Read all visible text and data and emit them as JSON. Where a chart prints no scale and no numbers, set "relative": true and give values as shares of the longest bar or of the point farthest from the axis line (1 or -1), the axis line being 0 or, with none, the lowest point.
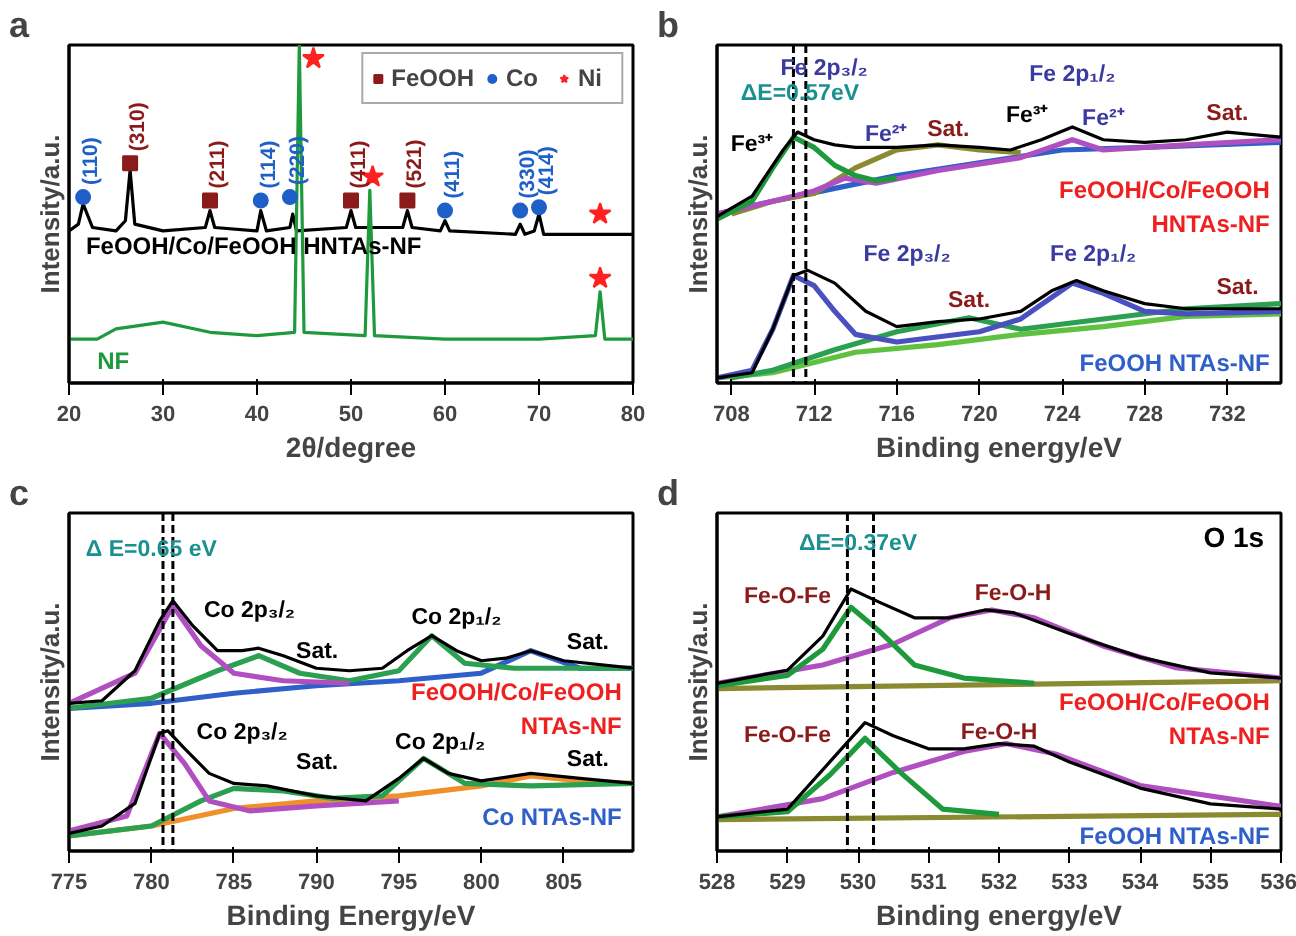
{
  "chart_data": [
    {
      "type": "line",
      "relative": true,
      "xlim": [
        20,
        80
      ],
      "xticks": [
        20,
        30,
        40,
        50,
        60,
        70,
        80
      ],
      "xlabel": "2θ/degree",
      "ylabel": "Intensity/a.u.",
      "tick_labels": "x",
      "legend": "top right",
      "annotations": [
        "a",
        {
          "text": "(310)",
          "x": 26.5,
          "y": 0.65
        },
        {
          "text": "(211)",
          "x": 35,
          "y": 0.54
        },
        {
          "text": "(411)",
          "x": 50,
          "y": 0.54
        },
        {
          "text": "(521)",
          "x": 56,
          "y": 0.54
        },
        {
          "text": "(110)",
          "x": 21.5,
          "y": 0.55
        },
        {
          "text": "(114)",
          "x": 40.4,
          "y": 0.54
        },
        {
          "text": "(220)",
          "x": 43.5,
          "y": 0.55
        },
        {
          "text": "(411)",
          "x": 60,
          "y": 0.51
        },
        {
          "text": "(330)",
          "x": 68,
          "y": 0.51
        },
        {
          "text": "(414)",
          "x": 70,
          "y": 0.52
        }
      ],
      "series": [
        {
          "name": "FeOOH/Co/FeOOH HNTAs-NF",
          "color": "#000000",
          "x": [
            20,
            21,
            21.5,
            22.5,
            25,
            26,
            26.5,
            27,
            30,
            34.5,
            35,
            35.5,
            40,
            40.4,
            41,
            43.5,
            43.8,
            44.2,
            49.5,
            50,
            50.5,
            55.5,
            56,
            56.5,
            59.5,
            60,
            60.5,
            67.5,
            68,
            68.5,
            69.5,
            70,
            70.5,
            75,
            80
          ],
          "values": [
            0.45,
            0.47,
            0.53,
            0.46,
            0.45,
            0.48,
            0.63,
            0.47,
            0.45,
            0.46,
            0.51,
            0.46,
            0.45,
            0.51,
            0.45,
            0.46,
            0.5,
            0.45,
            0.46,
            0.51,
            0.46,
            0.46,
            0.51,
            0.46,
            0.45,
            0.48,
            0.45,
            0.44,
            0.47,
            0.44,
            0.45,
            0.5,
            0.44,
            0.44,
            0.44
          ]
        },
        {
          "name": "NF",
          "color": "#1e9a3c",
          "x": [
            20,
            23,
            25,
            30,
            35,
            40,
            44,
            44.5,
            45,
            51.5,
            52,
            52.5,
            60,
            70,
            76,
            76.5,
            77,
            80
          ],
          "values": [
            0.13,
            0.13,
            0.16,
            0.18,
            0.15,
            0.14,
            0.15,
            1.0,
            0.15,
            0.14,
            0.57,
            0.14,
            0.13,
            0.13,
            0.14,
            0.27,
            0.13,
            0.13
          ]
        },
        {
          "name": "FeOOH",
          "type": "scatter",
          "marker": "square",
          "color": "#8b1a1a",
          "x": [
            26.5,
            35,
            50,
            56
          ],
          "values": [
            0.65,
            0.54,
            0.54,
            0.54
          ]
        },
        {
          "name": "Co",
          "type": "scatter",
          "marker": "circle",
          "color": "#1f5fc8",
          "x": [
            21.5,
            40.4,
            43.5,
            60,
            68,
            70
          ],
          "values": [
            0.55,
            0.54,
            0.55,
            0.51,
            0.51,
            0.52
          ]
        },
        {
          "name": "Ni",
          "type": "scatter",
          "marker": "star",
          "color": "#ff2020",
          "x": [
            46,
            52.3,
            76.5,
            76.5
          ],
          "values": [
            0.96,
            0.61,
            0.31,
            0.5
          ]
        }
      ]
    },
    {
      "type": "line",
      "relative": true,
      "xlim": [
        707.3,
        734.6
      ],
      "xticks": [
        708,
        712,
        716,
        720,
        724,
        728,
        732
      ],
      "xlabel": "Binding energy/eV",
      "ylabel": "Intensity/a.u.",
      "tick_labels": "x",
      "ref_lines": [
        {
          "axis": "x",
          "value": 711.0,
          "line_style": "dashed",
          "color": "#000000"
        },
        {
          "axis": "x",
          "value": 711.6,
          "line_style": "dashed",
          "color": "#000000"
        }
      ],
      "annotations": [
        "b",
        "Fe 2p₃/₂",
        "ΔE=0.57eV",
        "Fe³⁺",
        "Fe²⁺",
        "Sat.",
        "Fe 2p₁/₂",
        "Fe³⁺",
        "Fe²⁺",
        "Sat.",
        "Fe 2p₃/₂",
        "Fe 2p₁/₂",
        "Sat.",
        "Sat."
      ],
      "series": [
        {
          "color": "#2f5fc8",
          "x": [
            707.3,
            710,
            713,
            716,
            720,
            724,
            728,
            734.6
          ],
          "values": [
            0.66,
            0.71,
            0.76,
            0.81,
            0.86,
            0.91,
            0.92,
            0.94
          ]
        },
        {
          "color": "#8a8a30",
          "x": [
            708,
            710,
            712,
            714,
            716,
            718,
            720,
            722
          ],
          "values": [
            0.66,
            0.71,
            0.74,
            0.84,
            0.91,
            0.93,
            0.91,
            0.9
          ]
        },
        {
          "color": "#b04fc0",
          "x": [
            707.3,
            710,
            712,
            713.5,
            715,
            718,
            722,
            724.5,
            726,
            730,
            734.6
          ],
          "values": [
            0.66,
            0.71,
            0.75,
            0.8,
            0.78,
            0.83,
            0.88,
            0.95,
            0.91,
            0.93,
            0.95
          ]
        },
        {
          "color": "#1e9a3c",
          "x": [
            707.3,
            709,
            710,
            711,
            712,
            713,
            714,
            715,
            716
          ],
          "values": [
            0.64,
            0.71,
            0.84,
            0.96,
            0.92,
            0.85,
            0.81,
            0.79,
            0.8
          ]
        },
        {
          "name": "FeOOH/Co/FeOOH\nHNTAs-NF",
          "color": "#000000",
          "x": [
            707.3,
            709,
            710.5,
            711.2,
            712,
            713,
            714,
            716,
            718,
            720,
            721.5,
            723,
            724.5,
            726,
            728,
            730,
            732,
            734.6
          ],
          "values": [
            0.65,
            0.73,
            0.91,
            0.98,
            0.95,
            0.93,
            0.92,
            0.92,
            0.93,
            0.92,
            0.91,
            0.95,
            1.0,
            0.95,
            0.94,
            0.95,
            0.98,
            0.96
          ]
        },
        {
          "color": "#60c040",
          "x": [
            707.3,
            710,
            714,
            718,
            722,
            726,
            730,
            734.6
          ],
          "values": [
            0.02,
            0.04,
            0.12,
            0.15,
            0.19,
            0.22,
            0.26,
            0.27
          ]
        },
        {
          "color": "#2aa050",
          "x": [
            708,
            710,
            713,
            716,
            719.5,
            722,
            726,
            730,
            734.6
          ],
          "values": [
            0.02,
            0.05,
            0.13,
            0.2,
            0.255,
            0.21,
            0.25,
            0.29,
            0.31
          ]
        },
        {
          "color": "#4a50c0",
          "x": [
            707.3,
            709,
            710,
            711,
            712,
            713,
            714,
            716,
            720,
            722,
            724.5,
            726,
            728,
            730,
            734.6
          ],
          "values": [
            0.02,
            0.05,
            0.21,
            0.42,
            0.38,
            0.28,
            0.19,
            0.16,
            0.2,
            0.25,
            0.39,
            0.35,
            0.28,
            0.27,
            0.28
          ]
        },
        {
          "name": "FeOOH NTAs-NF",
          "color": "#000000",
          "x": [
            707.3,
            709,
            710,
            711,
            711.7,
            713,
            714.5,
            716,
            718,
            720,
            722,
            723.5,
            724.7,
            726,
            728,
            730,
            734.6
          ],
          "values": [
            0.02,
            0.04,
            0.21,
            0.42,
            0.44,
            0.39,
            0.28,
            0.22,
            0.24,
            0.25,
            0.28,
            0.36,
            0.4,
            0.36,
            0.31,
            0.29,
            0.29
          ]
        }
      ]
    },
    {
      "type": "line",
      "relative": true,
      "xlim": [
        775,
        809.2
      ],
      "xticks": [
        775,
        780,
        785,
        790,
        795,
        800,
        805
      ],
      "xlabel": "Binding Energy/eV",
      "ylabel": "Intensity/a.u.",
      "tick_labels": "x",
      "ref_lines": [
        {
          "axis": "x",
          "value": 780.7,
          "line_style": "dashed",
          "color": "#000000"
        },
        {
          "axis": "x",
          "value": 781.3,
          "line_style": "dashed",
          "color": "#000000"
        }
      ],
      "annotations": [
        "c",
        "Δ E=0.65 eV",
        "Co 2p₃/₂",
        "Sat.",
        "Co 2p₁/₂",
        "Sat.",
        "Co 2p₃/₂",
        "Sat.",
        "Co 2p₁/₂",
        "Sat."
      ],
      "series": [
        {
          "color": "#2f5fc8",
          "x": [
            775,
            780,
            785,
            790,
            795,
            800,
            803,
            806,
            809.2
          ],
          "values": [
            0.57,
            0.59,
            0.63,
            0.66,
            0.68,
            0.71,
            0.8,
            0.73,
            0.73
          ]
        },
        {
          "color": "#2aa050",
          "x": [
            775,
            780,
            784,
            786.5,
            789,
            792,
            795,
            797,
            799,
            802,
            809.2
          ],
          "values": [
            0.57,
            0.61,
            0.72,
            0.78,
            0.71,
            0.68,
            0.72,
            0.86,
            0.75,
            0.73,
            0.73
          ]
        },
        {
          "color": "#b04fc0",
          "x": [
            775,
            779,
            781.3,
            783,
            785,
            788,
            792
          ],
          "values": [
            0.59,
            0.71,
            0.98,
            0.82,
            0.71,
            0.68,
            0.67
          ]
        },
        {
          "name": "FeOOH/Co/FeOOH\nNTAs-NF",
          "color": "#000000",
          "x": [
            775,
            777,
            779,
            780.5,
            781.3,
            782.5,
            784,
            785.5,
            786.5,
            788,
            790,
            792,
            794,
            795.5,
            797,
            798.5,
            800,
            801.5,
            803,
            805,
            809.2
          ],
          "values": [
            0.59,
            0.6,
            0.72,
            0.92,
            1.0,
            0.9,
            0.8,
            0.8,
            0.81,
            0.78,
            0.73,
            0.72,
            0.73,
            0.8,
            0.86,
            0.8,
            0.76,
            0.77,
            0.8,
            0.76,
            0.73
          ]
        },
        {
          "color": "#f0902a",
          "x": [
            775,
            780,
            785,
            790,
            795,
            800,
            803,
            806,
            809.2
          ],
          "values": [
            0.06,
            0.1,
            0.17,
            0.2,
            0.22,
            0.26,
            0.3,
            0.28,
            0.27
          ]
        },
        {
          "color": "#2aa050",
          "x": [
            775,
            780,
            783,
            785,
            788,
            791,
            794,
            796.5,
            799,
            803,
            809.2
          ],
          "values": [
            0.06,
            0.1,
            0.2,
            0.25,
            0.24,
            0.21,
            0.22,
            0.37,
            0.27,
            0.26,
            0.27
          ]
        },
        {
          "color": "#b04fc0",
          "x": [
            775,
            778.5,
            780.5,
            782,
            783.5,
            786,
            790,
            795
          ],
          "values": [
            0.08,
            0.14,
            0.47,
            0.35,
            0.2,
            0.16,
            0.18,
            0.2
          ]
        },
        {
          "name": "Co NTAs-NF",
          "color": "#000000",
          "x": [
            775,
            777,
            779,
            780.5,
            781,
            782,
            783.5,
            785,
            787,
            790,
            793,
            795,
            796.5,
            798,
            800,
            803,
            806,
            809.2
          ],
          "values": [
            0.07,
            0.1,
            0.19,
            0.47,
            0.48,
            0.41,
            0.31,
            0.27,
            0.26,
            0.22,
            0.2,
            0.29,
            0.37,
            0.31,
            0.28,
            0.31,
            0.29,
            0.27
          ]
        }
      ]
    },
    {
      "type": "line",
      "relative": true,
      "xlim": [
        528,
        536
      ],
      "xticks": [
        528,
        529,
        530,
        531,
        532,
        533,
        534,
        535,
        536
      ],
      "xlabel": "Binding energy/eV",
      "ylabel": "Intensity/a.u.",
      "tick_labels": "x",
      "ref_lines": [
        {
          "axis": "x",
          "value": 529.85,
          "line_style": "dashed",
          "color": "#000000"
        },
        {
          "axis": "x",
          "value": 530.22,
          "line_style": "dashed",
          "color": "#000000"
        }
      ],
      "annotations": [
        "d",
        "O 1s",
        "ΔE=0.37eV",
        "Fe-O-Fe",
        "Fe-O-H",
        "Fe-O-Fe",
        "Fe-O-H"
      ],
      "series": [
        {
          "color": "#8a8a30",
          "x": [
            528,
            536
          ],
          "values": [
            0.62,
            0.65
          ]
        },
        {
          "color": "#b04fc0",
          "x": [
            528,
            529.5,
            530.5,
            531.3,
            531.9,
            532.5,
            533.5,
            534.5,
            536
          ],
          "values": [
            0.64,
            0.71,
            0.79,
            0.89,
            0.92,
            0.89,
            0.78,
            0.7,
            0.66
          ]
        },
        {
          "color": "#1e9a3c",
          "x": [
            528,
            529,
            529.5,
            529.9,
            530.3,
            530.8,
            531.5,
            532.5
          ],
          "values": [
            0.63,
            0.67,
            0.77,
            0.93,
            0.84,
            0.71,
            0.66,
            0.64
          ]
        },
        {
          "name": "FeOOH/Co/FeOOH\nNTAs-NF",
          "color": "#000000",
          "x": [
            528,
            529,
            529.5,
            529.9,
            530.3,
            530.8,
            531.3,
            531.8,
            532.2,
            533,
            534,
            535,
            536
          ],
          "values": [
            0.64,
            0.69,
            0.82,
            1.0,
            0.95,
            0.89,
            0.89,
            0.92,
            0.91,
            0.83,
            0.74,
            0.68,
            0.66
          ]
        },
        {
          "color": "#8a8a30",
          "x": [
            528,
            536
          ],
          "values": [
            0.12,
            0.14
          ]
        },
        {
          "color": "#b04fc0",
          "x": [
            528,
            529.5,
            530.5,
            531.5,
            532.1,
            532.8,
            534,
            536
          ],
          "values": [
            0.13,
            0.2,
            0.3,
            0.38,
            0.41,
            0.37,
            0.25,
            0.17
          ]
        },
        {
          "color": "#1e9a3c",
          "x": [
            528,
            529,
            529.6,
            530.1,
            530.6,
            531.2,
            532
          ],
          "values": [
            0.13,
            0.15,
            0.29,
            0.43,
            0.3,
            0.16,
            0.14
          ]
        },
        {
          "name": "FeOOH NTAs-NF",
          "color": "#000000",
          "x": [
            528,
            529,
            529.6,
            530.1,
            530.5,
            531,
            531.5,
            532,
            532.5,
            533,
            534,
            535,
            536
          ],
          "values": [
            0.13,
            0.16,
            0.34,
            0.49,
            0.44,
            0.39,
            0.39,
            0.41,
            0.4,
            0.34,
            0.24,
            0.18,
            0.16
          ]
        }
      ]
    }
  ]
}
